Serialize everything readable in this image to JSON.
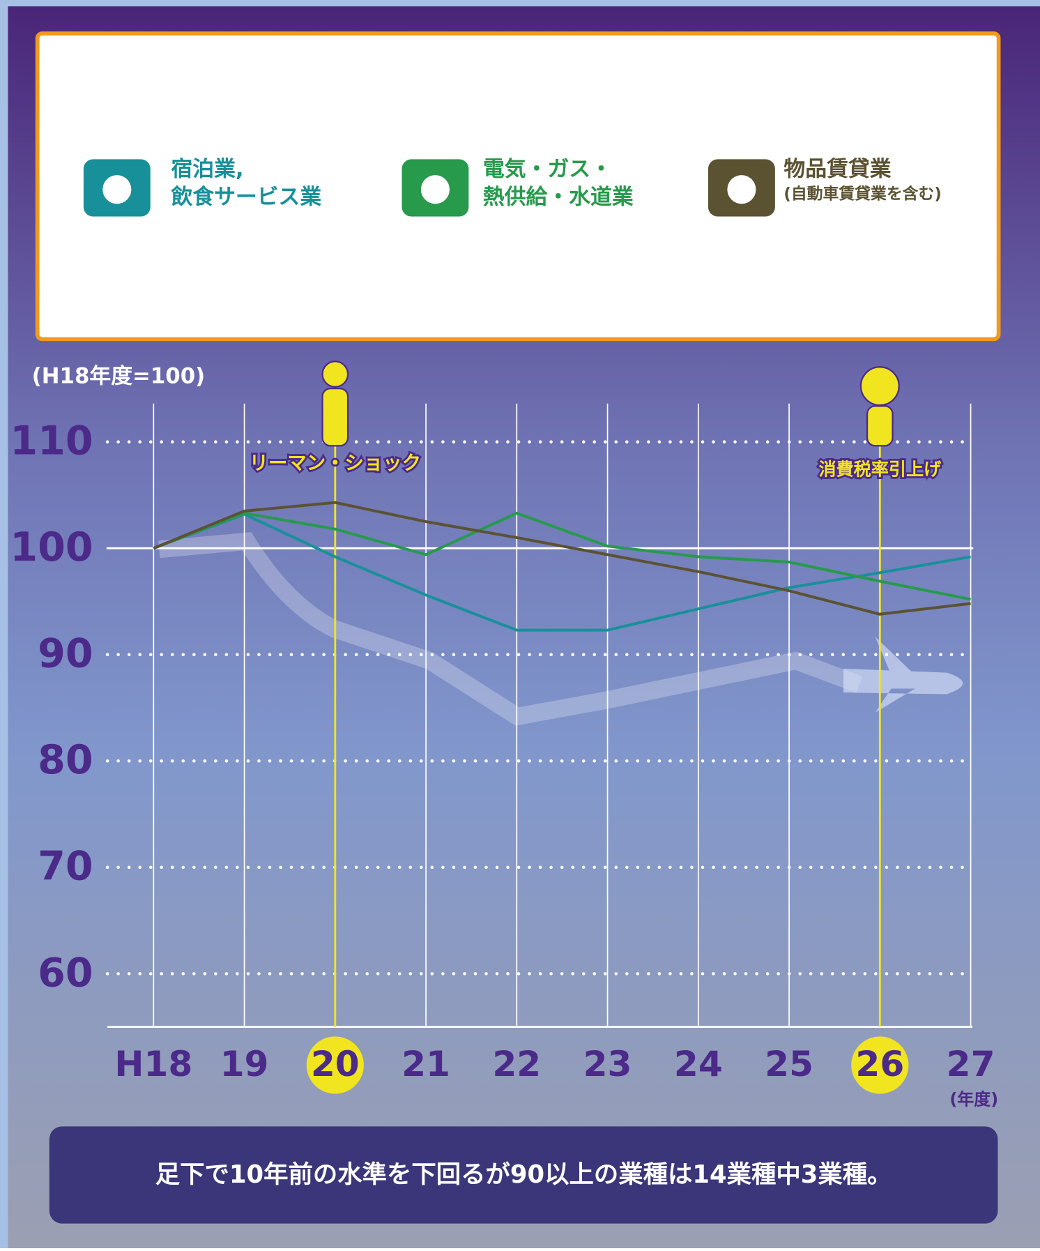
{
  "chart_data": {
    "type": "line",
    "y_unit_label": "(H18年度=100)",
    "x_unit_label": "(年度)",
    "categories": [
      "H18",
      "19",
      "20",
      "21",
      "22",
      "23",
      "24",
      "25",
      "26",
      "27"
    ],
    "series": [
      {
        "name": "宿泊業,\n飲食サービス業",
        "color": "#18909a",
        "values": [
          100,
          103.2,
          99.2,
          95.6,
          92.3,
          92.3,
          94.3,
          96.3,
          97.7,
          99.2
        ]
      },
      {
        "name": "電気・ガス・\n熱供給・水道業",
        "color": "#279a4c",
        "values": [
          100,
          103.3,
          101.8,
          99.4,
          103.3,
          100.2,
          99.2,
          98.7,
          96.9,
          95.2
        ]
      },
      {
        "name": "物品賃貸業",
        "note": "(自動車賃貸業を含む)",
        "color": "#5b5232",
        "values": [
          100,
          103.5,
          104.3,
          102.5,
          101.0,
          99.4,
          97.8,
          96.0,
          93.8,
          94.8
        ]
      }
    ],
    "ylim": [
      55,
      113
    ],
    "yticks": [
      60,
      70,
      80,
      90,
      100,
      110
    ],
    "reference_line": 100,
    "annotations": [
      {
        "x": "20",
        "text": "リーマン・ショック"
      },
      {
        "x": "26",
        "text": "消費税率引上げ"
      }
    ],
    "footnote": "足下で10年前の水準を下回るが90以上の業種は14業種中3業種。"
  }
}
